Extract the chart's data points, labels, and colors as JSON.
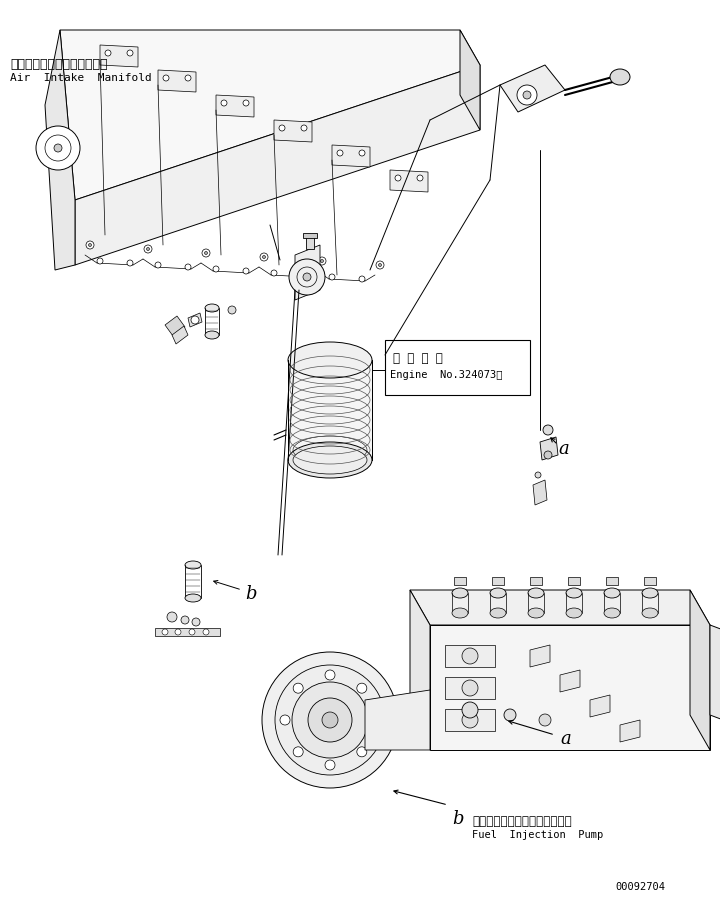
{
  "bg_color": "#ffffff",
  "line_color": "#000000",
  "part_number": "00092704",
  "labels": {
    "air_intake_jp": "エアーインテークマニホルド",
    "air_intake_en": "Air  Intake  Manifold",
    "engine_no_jp": "適 用 号 機",
    "engine_no_en": "Engine  No.324073～",
    "fuel_pump_jp": "フェルインジェクションポンプ",
    "fuel_pump_en": "Fuel  Injection  Pump",
    "label_a1": "a",
    "label_b1": "b",
    "label_a2": "a",
    "label_b2": "b"
  }
}
